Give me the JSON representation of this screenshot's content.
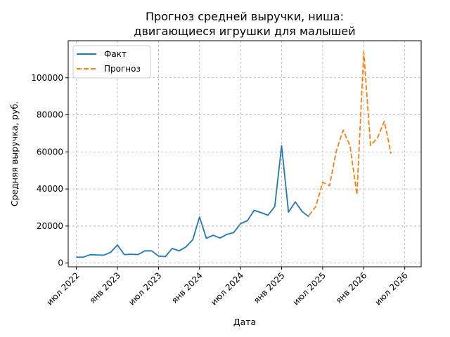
{
  "chart_data": {
    "type": "line",
    "title_lines": [
      "Прогноз средней выручки, ниша:",
      "двигающиеся игрушки для малышей"
    ],
    "xlabel": "Дата",
    "ylabel": "Средняя выручка, руб.",
    "x_tick_labels": [
      "июл 2022",
      "янв 2023",
      "июл 2023",
      "янв 2024",
      "июл 2024",
      "янв 2025",
      "июл 2025",
      "янв 2026",
      "июл 2026"
    ],
    "y_ticks": [
      0,
      20000,
      40000,
      60000,
      80000,
      100000
    ],
    "xlim": [
      2022.4,
      2026.7
    ],
    "ylim": [
      -2000,
      120000
    ],
    "grid": true,
    "legend_position": "top-left",
    "series": [
      {
        "name": "Факт",
        "color": "#1f77b4",
        "style": "solid",
        "points": [
          [
            "2022-07",
            3200
          ],
          [
            "2022-08",
            3200
          ],
          [
            "2022-09",
            4500
          ],
          [
            "2022-10",
            4400
          ],
          [
            "2022-11",
            4300
          ],
          [
            "2022-12",
            5800
          ],
          [
            "2023-01",
            9800
          ],
          [
            "2023-02",
            4600
          ],
          [
            "2023-03",
            4800
          ],
          [
            "2023-04",
            4600
          ],
          [
            "2023-05",
            6600
          ],
          [
            "2023-06",
            6600
          ],
          [
            "2023-07",
            3800
          ],
          [
            "2023-08",
            3500
          ],
          [
            "2023-09",
            7900
          ],
          [
            "2023-10",
            6600
          ],
          [
            "2023-11",
            8700
          ],
          [
            "2023-12",
            12600
          ],
          [
            "2024-01",
            24900
          ],
          [
            "2024-02",
            13400
          ],
          [
            "2024-03",
            15000
          ],
          [
            "2024-04",
            13500
          ],
          [
            "2024-05",
            15500
          ],
          [
            "2024-06",
            16500
          ],
          [
            "2024-07",
            21300
          ],
          [
            "2024-08",
            22900
          ],
          [
            "2024-09",
            28500
          ],
          [
            "2024-10",
            27200
          ],
          [
            "2024-11",
            25800
          ],
          [
            "2024-12",
            30600
          ],
          [
            "2025-01",
            63300
          ],
          [
            "2025-02",
            27500
          ],
          [
            "2025-03",
            33000
          ],
          [
            "2025-04",
            27800
          ],
          [
            "2025-05",
            25000
          ]
        ]
      },
      {
        "name": "Прогноз",
        "color": "#ff7f0e",
        "style": "dashed",
        "points": [
          [
            "2025-05",
            25700
          ],
          [
            "2025-06",
            30600
          ],
          [
            "2025-07",
            43600
          ],
          [
            "2025-08",
            41700
          ],
          [
            "2025-09",
            60600
          ],
          [
            "2025-10",
            71700
          ],
          [
            "2025-11",
            63300
          ],
          [
            "2025-12",
            37000
          ],
          [
            "2026-01",
            114000
          ],
          [
            "2026-02",
            63500
          ],
          [
            "2026-03",
            67400
          ],
          [
            "2026-04",
            76500
          ],
          [
            "2026-05",
            59100
          ]
        ]
      }
    ]
  }
}
